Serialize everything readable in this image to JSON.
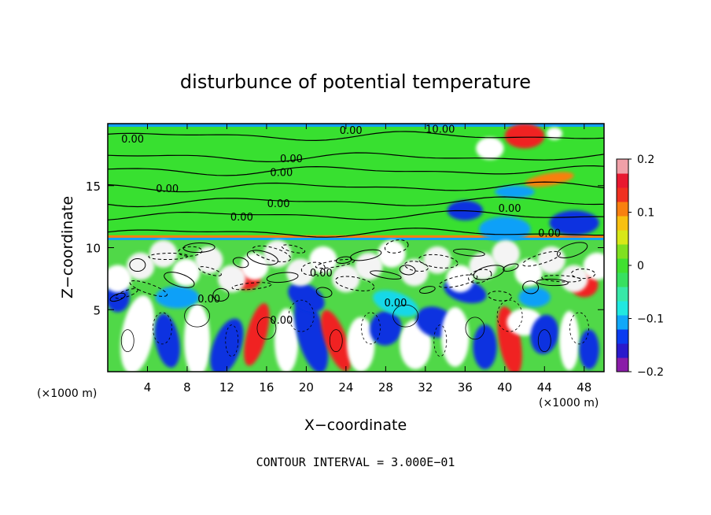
{
  "chart_data": {
    "type": "heatmap",
    "title": "disturbunce of potential temperature",
    "xlabel": "X−coordinate",
    "ylabel": "Z−coordinate",
    "x_unit": "(×1000 m)",
    "y_unit": "(×1000 m)",
    "xlim": [
      0,
      50
    ],
    "ylim": [
      0,
      20
    ],
    "x_ticks": [
      4,
      8,
      12,
      16,
      20,
      24,
      28,
      32,
      36,
      40,
      44,
      48
    ],
    "x_tick_labels": [
      "4",
      "8",
      "12",
      "16",
      "20",
      "24",
      "28",
      "32",
      "36",
      "40",
      "44",
      "48"
    ],
    "y_ticks": [
      5,
      10,
      15
    ],
    "y_tick_labels": [
      "5",
      "10",
      "15"
    ],
    "colorbar": {
      "range": [
        -0.2,
        0.2
      ],
      "ticks": [
        0.2,
        0.1,
        0,
        -0.1,
        -0.2
      ],
      "tick_labels": [
        "0.2",
        "0.1",
        "0",
        "−0.1",
        "−0.2"
      ],
      "colors": [
        "#8a1ca8",
        "#2a1acc",
        "#0a3cf0",
        "#10a8f8",
        "#20e8e0",
        "#38e8a8",
        "#38e060",
        "#40e030",
        "#80e020",
        "#d8e818",
        "#f8c010",
        "#f88010",
        "#f03020",
        "#e81830",
        "#f0a0a8"
      ]
    },
    "contour_labels": [
      {
        "text": "0.00",
        "x": 2.5,
        "z": 18.8
      },
      {
        "text": "0.00",
        "x": 24.5,
        "z": 19.5
      },
      {
        "text": "10.00",
        "x": 33.5,
        "z": 19.6
      },
      {
        "text": "0.00",
        "x": 18.5,
        "z": 17.2
      },
      {
        "text": "0.00",
        "x": 17.5,
        "z": 16.1
      },
      {
        "text": "0.00",
        "x": 6.0,
        "z": 14.8
      },
      {
        "text": "0.00",
        "x": 17.2,
        "z": 13.6
      },
      {
        "text": "0.00",
        "x": 13.5,
        "z": 12.5
      },
      {
        "text": "0.00",
        "x": 40.5,
        "z": 13.2
      },
      {
        "text": "0.00",
        "x": 44.5,
        "z": 11.2
      },
      {
        "text": "0.00",
        "x": 21.5,
        "z": 8.0
      },
      {
        "text": "0.00",
        "x": 10.2,
        "z": 5.9
      },
      {
        "text": "0.00",
        "x": 29.0,
        "z": 5.6
      },
      {
        "text": "0.00",
        "x": 17.5,
        "z": 4.2
      }
    ],
    "annotation": "CONTOUR INTERVAL = 3.000E−01"
  }
}
